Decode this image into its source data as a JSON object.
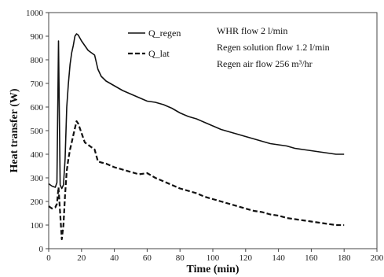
{
  "chart_data": {
    "type": "line",
    "title": "",
    "xlabel": "Time (min)",
    "ylabel": "Heat transfer (W)",
    "xlim": [
      0,
      200
    ],
    "ylim": [
      0,
      1000
    ],
    "xticks": [
      0,
      20,
      40,
      60,
      80,
      100,
      120,
      140,
      160,
      180,
      200
    ],
    "yticks": [
      0,
      100,
      200,
      300,
      400,
      500,
      600,
      700,
      800,
      900,
      1000
    ],
    "grid": false,
    "legend": {
      "placement": "top-left-center"
    },
    "annotations": [
      "WHR flow 2 l/min",
      "Regen solution flow 1.2 l/min",
      "Regen air flow  256 m³/hr"
    ],
    "series": [
      {
        "name": "Q_regen",
        "style": "solid",
        "color": "#111111",
        "x": [
          0,
          2,
          4,
          5,
          6,
          7,
          8,
          9,
          10,
          11,
          12,
          13,
          14,
          15,
          16,
          17,
          18,
          20,
          22,
          24,
          26,
          28,
          30,
          32,
          35,
          40,
          45,
          50,
          55,
          60,
          65,
          70,
          75,
          80,
          85,
          90,
          95,
          100,
          105,
          110,
          115,
          120,
          125,
          130,
          135,
          140,
          145,
          150,
          155,
          160,
          165,
          170,
          175,
          180
        ],
        "y": [
          275,
          265,
          260,
          280,
          880,
          270,
          255,
          270,
          380,
          600,
          700,
          780,
          830,
          860,
          900,
          910,
          905,
          880,
          860,
          840,
          830,
          820,
          760,
          730,
          710,
          690,
          670,
          655,
          640,
          625,
          620,
          610,
          595,
          575,
          560,
          550,
          535,
          520,
          505,
          495,
          485,
          475,
          465,
          455,
          445,
          440,
          435,
          425,
          420,
          415,
          410,
          405,
          400,
          400
        ]
      },
      {
        "name": "Q_lat",
        "style": "dashed",
        "color": "#111111",
        "x": [
          0,
          2,
          4,
          5,
          6,
          7,
          8,
          9,
          10,
          11,
          12,
          13,
          14,
          15,
          16,
          17,
          18,
          20,
          22,
          24,
          26,
          28,
          30,
          32,
          35,
          40,
          45,
          50,
          55,
          60,
          65,
          70,
          75,
          80,
          85,
          90,
          95,
          100,
          105,
          110,
          115,
          120,
          125,
          130,
          135,
          140,
          145,
          150,
          155,
          160,
          165,
          170,
          175,
          180
        ],
        "y": [
          180,
          170,
          175,
          190,
          260,
          150,
          40,
          100,
          230,
          330,
          380,
          420,
          450,
          480,
          510,
          540,
          530,
          490,
          450,
          440,
          430,
          420,
          370,
          365,
          360,
          345,
          335,
          325,
          315,
          320,
          300,
          285,
          270,
          255,
          245,
          235,
          220,
          210,
          200,
          190,
          180,
          170,
          160,
          155,
          145,
          140,
          130,
          125,
          120,
          115,
          110,
          105,
          100,
          100
        ]
      }
    ]
  }
}
